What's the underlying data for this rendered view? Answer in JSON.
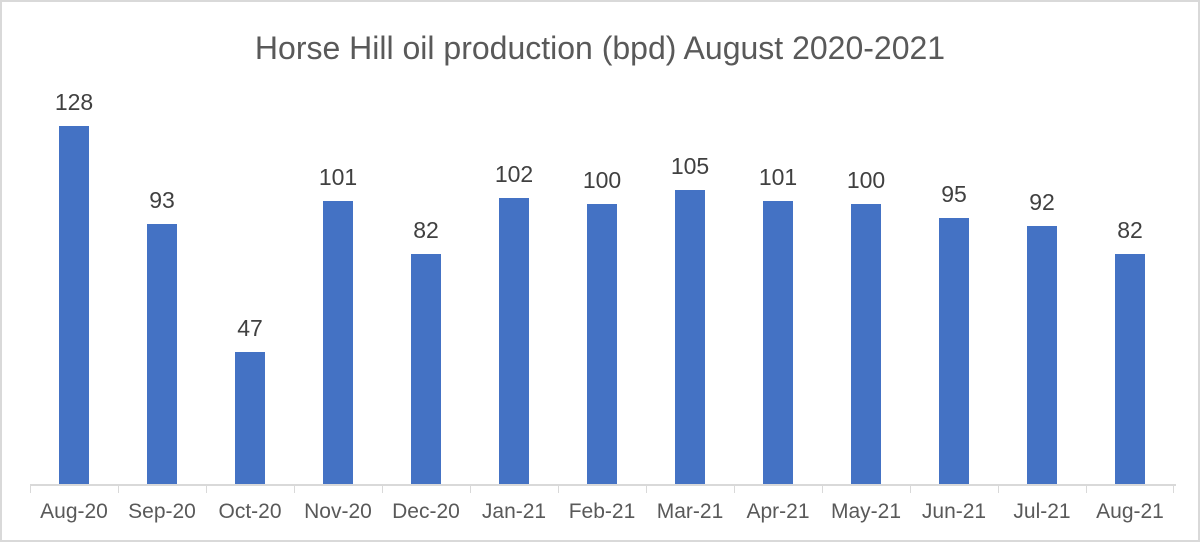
{
  "chart_data": {
    "type": "bar",
    "title": "Horse Hill oil production (bpd) August 2020-2021",
    "categories": [
      "Aug-20",
      "Sep-20",
      "Oct-20",
      "Nov-20",
      "Dec-20",
      "Jan-21",
      "Feb-21",
      "Mar-21",
      "Apr-21",
      "May-21",
      "Jun-21",
      "Jul-21",
      "Aug-21"
    ],
    "values": [
      128,
      93,
      47,
      101,
      82,
      102,
      100,
      105,
      101,
      100,
      95,
      92,
      82
    ],
    "xlabel": "",
    "ylabel": "",
    "ylim": [
      0,
      130
    ],
    "grid": false,
    "legend": false,
    "data_labels": true,
    "bar_color": "#4472C4",
    "data_label_color": "#404040",
    "axis_text_color": "#595959",
    "axis_line_color": "#D9D9D9",
    "frame_border_color": "#D9D9D9",
    "background_color": "#FFFFFF"
  }
}
